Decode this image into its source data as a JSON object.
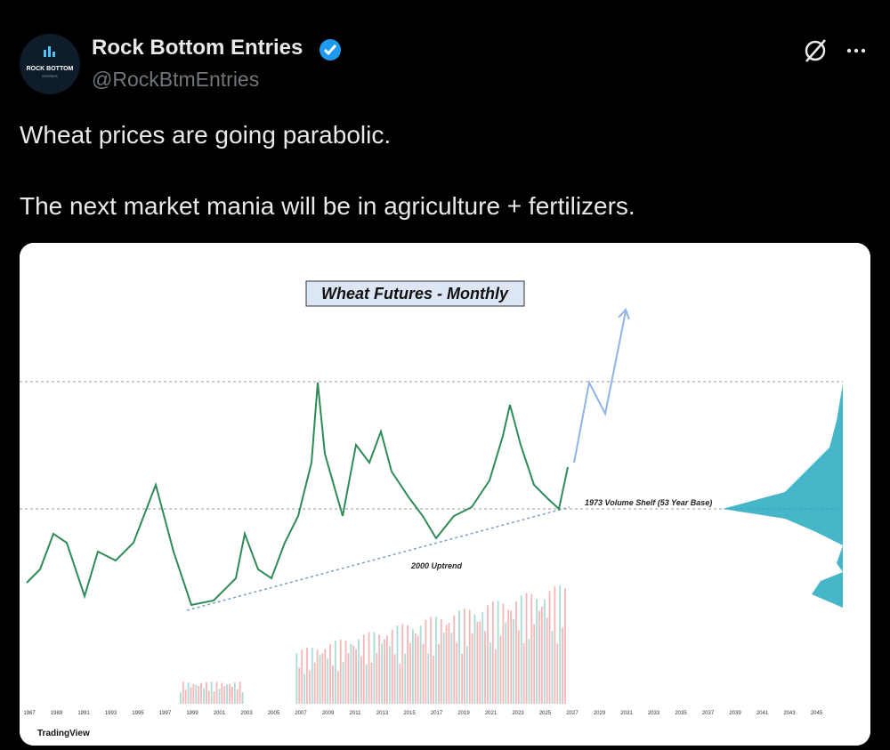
{
  "tweet": {
    "author": {
      "name": "Rock Bottom Entries",
      "handle": "@RockBtmEntries",
      "avatar_text": "ROCK BOTTOM",
      "avatar_subtext": "ENTRIES"
    },
    "text": [
      "Wheat prices are going parabolic.",
      "The next market mania will be in agriculture + fertilizers."
    ],
    "image": {
      "title": "Wheat Futures - Monthly",
      "annotations": [
        "1973 Volume Shelf (53 Year Base)",
        "2000 Uptrend"
      ],
      "brand": "TradingView",
      "x_axis_labels": [
        "1987",
        "1989",
        "1991",
        "1993",
        "1995",
        "1997",
        "1999",
        "2001",
        "2003",
        "2005",
        "2007",
        "2009",
        "2011",
        "2013",
        "2015",
        "2017",
        "2019",
        "2021",
        "2023",
        "2025",
        "2027",
        "2029",
        "2031",
        "2033",
        "2035",
        "2037",
        "2039",
        "2041",
        "2043",
        "2045"
      ]
    }
  }
}
